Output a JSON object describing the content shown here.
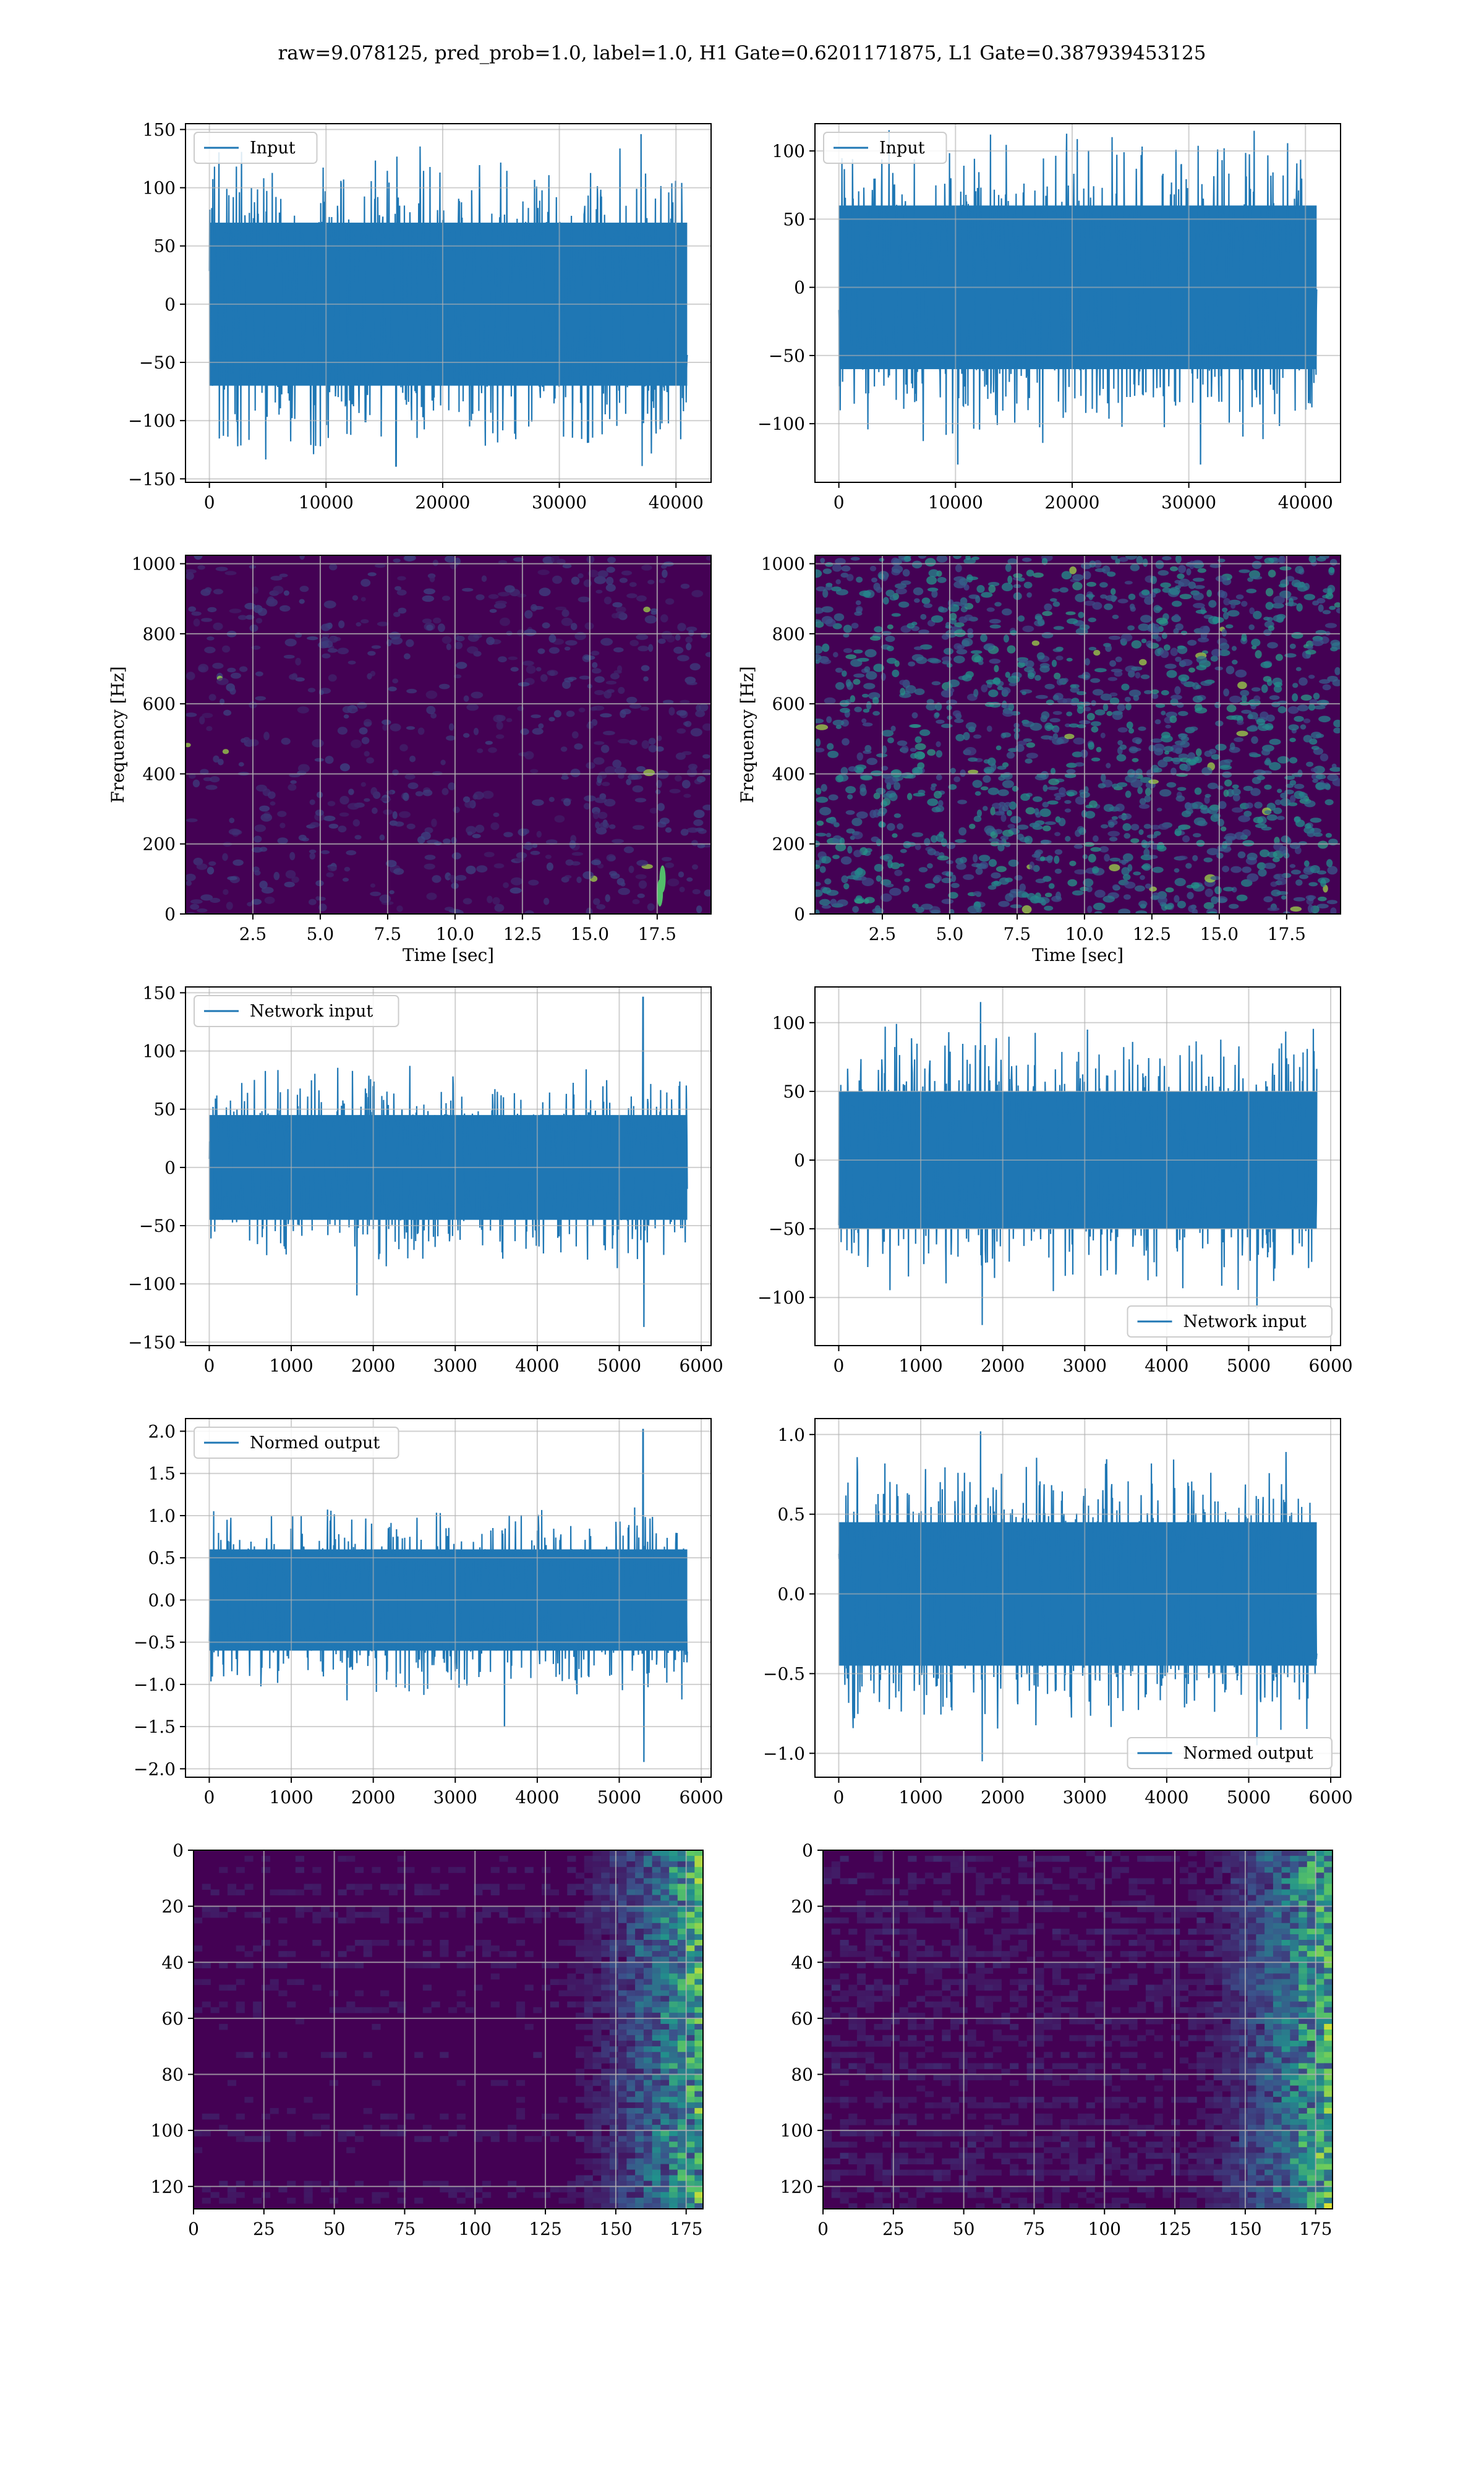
{
  "figure": {
    "title": "raw=9.078125, pred_prob=1.0, label=1.0, H1 Gate=0.6201171875, L1 Gate=0.387939453125"
  },
  "colors": {
    "line": "#1f77b4",
    "grid": "#b0b0b0",
    "viridis_dark": "#440154",
    "viridis_mid": "#21918c",
    "viridis_bright": "#fde725"
  },
  "chart_data": [
    {
      "id": "h1-input",
      "type": "line",
      "title": "",
      "series": [
        {
          "name": "Input",
          "x_range": [
            0,
            40960
          ],
          "y_envelope": [
            -70,
            70
          ],
          "extremes": [
            {
              "x": 37000,
              "y": 146
            },
            {
              "x": 37100,
              "y": -139
            },
            {
              "x": 16000,
              "y": -139
            }
          ]
        }
      ],
      "xlim": [
        -2048,
        43008
      ],
      "ylim": [
        -153,
        155
      ],
      "xticks": [
        0,
        10000,
        20000,
        30000,
        40000
      ],
      "yticks": [
        -150,
        -100,
        -50,
        0,
        50,
        100,
        150
      ],
      "xlabel": "",
      "ylabel": "",
      "legend": "upper left",
      "grid": true
    },
    {
      "id": "l1-input",
      "type": "line",
      "title": "",
      "series": [
        {
          "name": "Input",
          "x_range": [
            0,
            40960
          ],
          "y_envelope": [
            -60,
            60
          ],
          "extremes": [
            {
              "x": 13000,
              "y": 112
            },
            {
              "x": 10200,
              "y": -130
            },
            {
              "x": 31000,
              "y": -130
            }
          ]
        }
      ],
      "xlim": [
        -2048,
        43008
      ],
      "ylim": [
        -143,
        120
      ],
      "xticks": [
        0,
        10000,
        20000,
        30000,
        40000
      ],
      "yticks": [
        -100,
        -50,
        0,
        50,
        100
      ],
      "xlabel": "",
      "ylabel": "",
      "legend": "upper left",
      "grid": true
    },
    {
      "id": "h1-spectrogram",
      "type": "heatmap",
      "title": "",
      "xlim": [
        0,
        19.5
      ],
      "ylim": [
        0,
        1024
      ],
      "xticks": [
        2.5,
        5.0,
        7.5,
        10.0,
        12.5,
        15.0,
        17.5
      ],
      "yticks": [
        0,
        200,
        400,
        600,
        800,
        1000
      ],
      "xlabel": "Time [sec]",
      "ylabel": "Frequency [Hz]",
      "grid": true,
      "intensity": "low",
      "bright_spots": [
        {
          "x": 17.6,
          "y": 60
        },
        {
          "x": 17.7,
          "y": 100
        }
      ]
    },
    {
      "id": "l1-spectrogram",
      "type": "heatmap",
      "title": "",
      "xlim": [
        0,
        19.5
      ],
      "ylim": [
        0,
        1024
      ],
      "xticks": [
        2.5,
        5.0,
        7.5,
        10.0,
        12.5,
        15.0,
        17.5
      ],
      "yticks": [
        0,
        200,
        400,
        600,
        800,
        1000
      ],
      "xlabel": "Time [sec]",
      "ylabel": "Frequency [Hz]",
      "grid": true,
      "intensity": "high"
    },
    {
      "id": "h1-network-input",
      "type": "line",
      "title": "",
      "series": [
        {
          "name": "Network input",
          "x_range": [
            0,
            5830
          ],
          "y_envelope": [
            -45,
            45
          ],
          "extremes": [
            {
              "x": 5290,
              "y": 146
            },
            {
              "x": 5300,
              "y": -137
            },
            {
              "x": 1800,
              "y": -110
            }
          ]
        }
      ],
      "xlim": [
        -290,
        6120
      ],
      "ylim": [
        -153,
        155
      ],
      "xticks": [
        0,
        1000,
        2000,
        3000,
        4000,
        5000,
        6000
      ],
      "yticks": [
        -150,
        -100,
        -50,
        0,
        50,
        100,
        150
      ],
      "xlabel": "",
      "ylabel": "",
      "legend": "upper left",
      "grid": true
    },
    {
      "id": "l1-network-input",
      "type": "line",
      "title": "",
      "series": [
        {
          "name": "Network input",
          "x_range": [
            0,
            5830
          ],
          "y_envelope": [
            -50,
            50
          ],
          "extremes": [
            {
              "x": 1730,
              "y": 115
            },
            {
              "x": 1750,
              "y": -120
            },
            {
              "x": 5100,
              "y": -108
            }
          ]
        }
      ],
      "xlim": [
        -290,
        6120
      ],
      "ylim": [
        -135,
        126
      ],
      "xticks": [
        0,
        1000,
        2000,
        3000,
        4000,
        5000,
        6000
      ],
      "yticks": [
        -100,
        -50,
        0,
        50,
        100
      ],
      "xlabel": "",
      "ylabel": "",
      "legend": "lower right",
      "grid": true
    },
    {
      "id": "h1-normed-output",
      "type": "line",
      "title": "",
      "series": [
        {
          "name": "Normed output",
          "x_range": [
            0,
            5830
          ],
          "y_envelope": [
            -0.6,
            0.6
          ],
          "extremes": [
            {
              "x": 5290,
              "y": 2.02
            },
            {
              "x": 5300,
              "y": -1.92
            },
            {
              "x": 3600,
              "y": -1.5
            }
          ]
        }
      ],
      "xlim": [
        -290,
        6120
      ],
      "ylim": [
        -2.1,
        2.15
      ],
      "xticks": [
        0,
        1000,
        2000,
        3000,
        4000,
        5000,
        6000
      ],
      "yticks": [
        -2.0,
        -1.5,
        -1.0,
        -0.5,
        0.0,
        0.5,
        1.0,
        1.5,
        2.0
      ],
      "xlabel": "",
      "ylabel": "",
      "legend": "upper left",
      "grid": true
    },
    {
      "id": "l1-normed-output",
      "type": "line",
      "title": "",
      "series": [
        {
          "name": "Normed output",
          "x_range": [
            0,
            5830
          ],
          "y_envelope": [
            -0.45,
            0.45
          ],
          "extremes": [
            {
              "x": 1730,
              "y": 1.02
            },
            {
              "x": 1750,
              "y": -1.05
            },
            {
              "x": 5100,
              "y": -0.95
            }
          ]
        }
      ],
      "xlim": [
        -290,
        6120
      ],
      "ylim": [
        -1.15,
        1.1
      ],
      "xticks": [
        0,
        1000,
        2000,
        3000,
        4000,
        5000,
        6000
      ],
      "yticks": [
        -1.0,
        -0.5,
        0.0,
        0.5,
        1.0
      ],
      "xlabel": "",
      "ylabel": "",
      "legend": "lower right",
      "grid": true
    },
    {
      "id": "h1-feature-map",
      "type": "heatmap",
      "title": "",
      "xlim": [
        0,
        181
      ],
      "ylim": [
        128,
        0
      ],
      "xticks": [
        0,
        25,
        50,
        75,
        100,
        125,
        150,
        175
      ],
      "yticks": [
        0,
        20,
        40,
        60,
        80,
        100,
        120
      ],
      "xlabel": "",
      "ylabel": "",
      "grid": true,
      "active_from_x": 125
    },
    {
      "id": "l1-feature-map",
      "type": "heatmap",
      "title": "",
      "xlim": [
        0,
        181
      ],
      "ylim": [
        128,
        0
      ],
      "xticks": [
        0,
        25,
        50,
        75,
        100,
        125,
        150,
        175
      ],
      "yticks": [
        0,
        20,
        40,
        60,
        80,
        100,
        120
      ],
      "xlabel": "",
      "ylabel": "",
      "grid": true,
      "active_from_x": 125
    }
  ]
}
